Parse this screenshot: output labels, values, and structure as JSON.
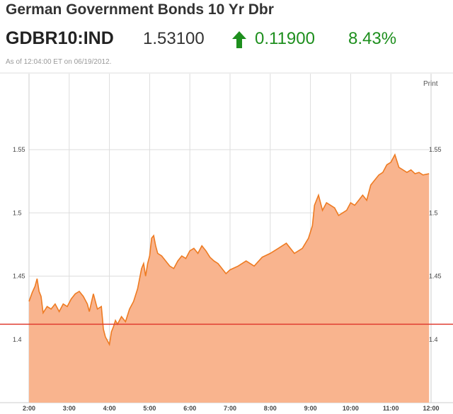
{
  "header": {
    "title": "German Government Bonds 10 Yr Dbr",
    "ticker": "GDBR10:IND",
    "price": "1.53100",
    "change": "0.11900",
    "change_pct": "8.43%",
    "change_direction_icon": "up-arrow-icon",
    "asof_prefix": "As of",
    "asof_time": "12:04:00 ET",
    "asof_on": "on",
    "asof_date": "06/19/2012."
  },
  "print_label": "Print",
  "colors": {
    "up": "#1e8f1e",
    "area_fill": "#f9b48e",
    "line": "#ee7b22",
    "reference_line": "#e03c31",
    "grid": "#dddddd"
  },
  "chart_data": {
    "type": "area",
    "x_tick_labels": [
      "2:00",
      "3:00",
      "4:00",
      "5:00",
      "6:00",
      "7:00",
      "8:00",
      "9:00",
      "10:00",
      "11:00",
      "12:00"
    ],
    "y_tick_labels": [
      "1.55",
      "1.5",
      "1.45",
      "1.4"
    ],
    "y_ticks": [
      1.55,
      1.5,
      1.45,
      1.4
    ],
    "x_range_hours": [
      2,
      12
    ],
    "ylim": [
      1.35,
      1.61
    ],
    "reference_line": 1.412,
    "grid": true,
    "series": [
      {
        "x": [
          2.0,
          2.08,
          2.15,
          2.2,
          2.25,
          2.3,
          2.35,
          2.45,
          2.55,
          2.65,
          2.75,
          2.85,
          2.95,
          3.05,
          3.15,
          3.25,
          3.35,
          3.45,
          3.5,
          3.6,
          3.7,
          3.8,
          3.85,
          3.9,
          4.0,
          4.05,
          4.1,
          4.15,
          4.2,
          4.3,
          4.4,
          4.5,
          4.6,
          4.7,
          4.8,
          4.85,
          4.9,
          4.95,
          5.0,
          5.05,
          5.1,
          5.15,
          5.2,
          5.3,
          5.4,
          5.5,
          5.6,
          5.7,
          5.8,
          5.9,
          6.0,
          6.1,
          6.2,
          6.3,
          6.4,
          6.5,
          6.6,
          6.7,
          6.8,
          6.9,
          7.0,
          7.2,
          7.4,
          7.6,
          7.8,
          8.0,
          8.2,
          8.4,
          8.6,
          8.8,
          8.95,
          9.05,
          9.1,
          9.15,
          9.2,
          9.3,
          9.4,
          9.5,
          9.6,
          9.7,
          9.8,
          9.9,
          10.0,
          10.1,
          10.2,
          10.3,
          10.4,
          10.5,
          10.6,
          10.7,
          10.8,
          10.9,
          11.0,
          11.1,
          11.2,
          11.3,
          11.4,
          11.5,
          11.6,
          11.7,
          11.8,
          11.95
        ],
        "values": [
          1.43,
          1.437,
          1.442,
          1.448,
          1.438,
          1.434,
          1.421,
          1.426,
          1.424,
          1.428,
          1.422,
          1.428,
          1.426,
          1.432,
          1.436,
          1.438,
          1.434,
          1.428,
          1.422,
          1.436,
          1.424,
          1.426,
          1.408,
          1.402,
          1.396,
          1.406,
          1.41,
          1.415,
          1.412,
          1.418,
          1.414,
          1.424,
          1.43,
          1.44,
          1.456,
          1.46,
          1.45,
          1.46,
          1.466,
          1.48,
          1.482,
          1.474,
          1.468,
          1.466,
          1.462,
          1.458,
          1.456,
          1.462,
          1.466,
          1.464,
          1.47,
          1.472,
          1.468,
          1.474,
          1.47,
          1.465,
          1.462,
          1.46,
          1.456,
          1.452,
          1.455,
          1.458,
          1.462,
          1.458,
          1.465,
          1.468,
          1.472,
          1.476,
          1.468,
          1.472,
          1.48,
          1.49,
          1.506,
          1.51,
          1.514,
          1.502,
          1.508,
          1.506,
          1.504,
          1.498,
          1.5,
          1.502,
          1.508,
          1.506,
          1.51,
          1.514,
          1.51,
          1.522,
          1.526,
          1.53,
          1.532,
          1.538,
          1.54,
          1.546,
          1.536,
          1.534,
          1.532,
          1.534,
          1.531,
          1.532,
          1.53,
          1.531
        ]
      }
    ]
  }
}
